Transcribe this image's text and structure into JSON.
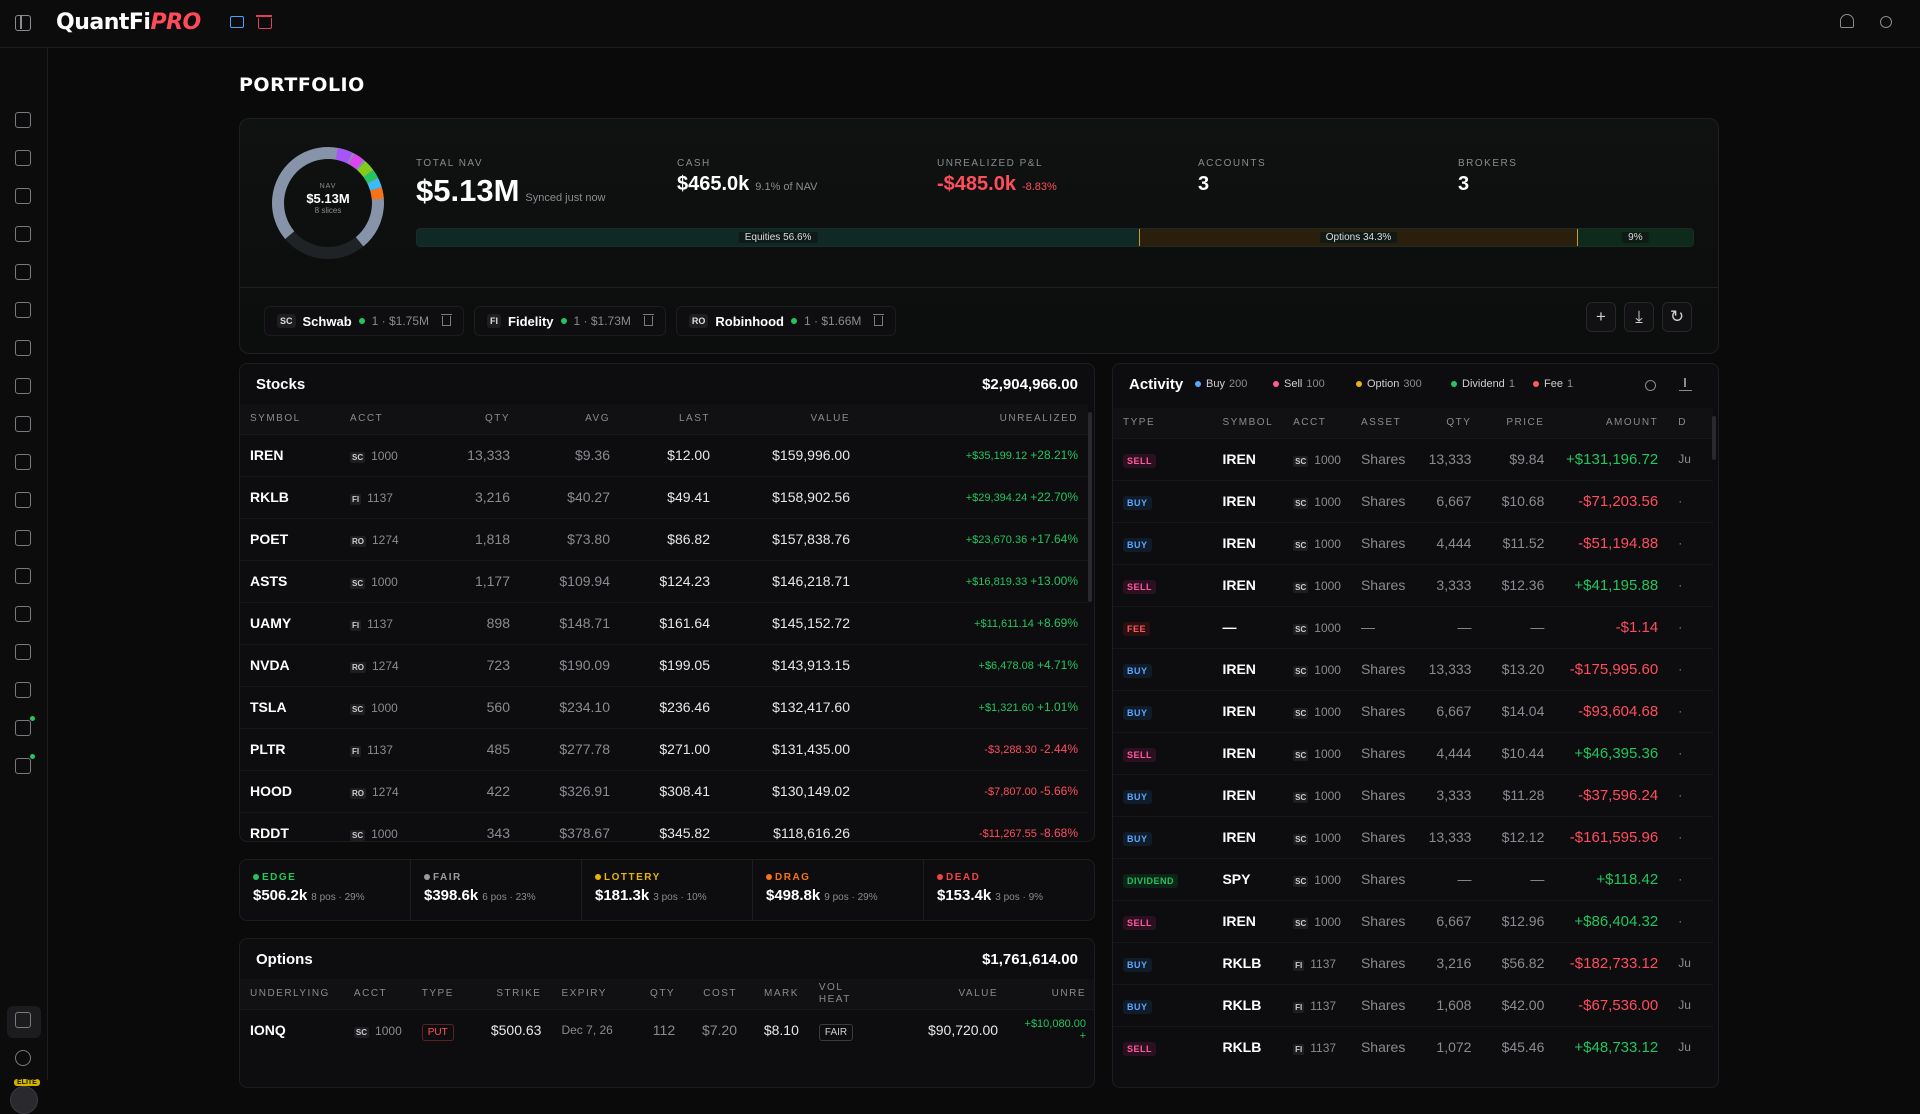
{
  "app": {
    "brand_main": "QuantFi",
    "brand_accent": "PRO"
  },
  "page": {
    "title": "PORTFOLIO"
  },
  "summary": {
    "donut": {
      "label": "NAV",
      "value": "$5.13M",
      "sub": "8 slices"
    },
    "total_nav": {
      "label": "TOTAL NAV",
      "value": "$5.13M",
      "sub": "Synced just now"
    },
    "cash": {
      "label": "CASH",
      "value": "$465.0k",
      "sub": "9.1% of NAV"
    },
    "unrealized": {
      "label": "UNREALIZED P&L",
      "value": "-$485.0k",
      "sub": "-8.83%"
    },
    "accounts": {
      "label": "ACCOUNTS",
      "value": "3"
    },
    "brokers": {
      "label": "BROKERS",
      "value": "3"
    },
    "allocation": [
      {
        "label": "Equities 56.6%",
        "pct": 56.6,
        "color": "#0f2a26"
      },
      {
        "label": "Options 34.3%",
        "pct": 34.3,
        "color": "#2a1e0c"
      },
      {
        "label": "9%",
        "pct": 9.1,
        "color": "#0e2a1a"
      }
    ]
  },
  "broker_chips": [
    {
      "tag": "SC",
      "name": "Schwab",
      "meta": "1 · $1.75M"
    },
    {
      "tag": "FI",
      "name": "Fidelity",
      "meta": "1 · $1.73M"
    },
    {
      "tag": "RO",
      "name": "Robinhood",
      "meta": "1 · $1.66M"
    }
  ],
  "actions": {
    "add": "+",
    "download": "⤓",
    "refresh": "↻"
  },
  "stocks": {
    "title": "Stocks",
    "total": "$2,904,966.00",
    "columns": [
      "SYMBOL",
      "ACCT",
      "QTY",
      "AVG",
      "LAST",
      "VALUE",
      "UNREALIZED"
    ],
    "rows": [
      {
        "symbol": "IREN",
        "tag": "SC",
        "acct": "1000",
        "qty": "13,333",
        "avg": "$9.36",
        "last": "$12.00",
        "value": "$159,996.00",
        "pnl": "+$35,199.12",
        "pct": "+28.21%",
        "up": true
      },
      {
        "symbol": "RKLB",
        "tag": "FI",
        "acct": "1137",
        "qty": "3,216",
        "avg": "$40.27",
        "last": "$49.41",
        "value": "$158,902.56",
        "pnl": "+$29,394.24",
        "pct": "+22.70%",
        "up": true
      },
      {
        "symbol": "POET",
        "tag": "RO",
        "acct": "1274",
        "qty": "1,818",
        "avg": "$73.80",
        "last": "$86.82",
        "value": "$157,838.76",
        "pnl": "+$23,670.36",
        "pct": "+17.64%",
        "up": true
      },
      {
        "symbol": "ASTS",
        "tag": "SC",
        "acct": "1000",
        "qty": "1,177",
        "avg": "$109.94",
        "last": "$124.23",
        "value": "$146,218.71",
        "pnl": "+$16,819.33",
        "pct": "+13.00%",
        "up": true
      },
      {
        "symbol": "UAMY",
        "tag": "FI",
        "acct": "1137",
        "qty": "898",
        "avg": "$148.71",
        "last": "$161.64",
        "value": "$145,152.72",
        "pnl": "+$11,611.14",
        "pct": "+8.69%",
        "up": true
      },
      {
        "symbol": "NVDA",
        "tag": "RO",
        "acct": "1274",
        "qty": "723",
        "avg": "$190.09",
        "last": "$199.05",
        "value": "$143,913.15",
        "pnl": "+$6,478.08",
        "pct": "+4.71%",
        "up": true
      },
      {
        "symbol": "TSLA",
        "tag": "SC",
        "acct": "1000",
        "qty": "560",
        "avg": "$234.10",
        "last": "$236.46",
        "value": "$132,417.60",
        "pnl": "+$1,321.60",
        "pct": "+1.01%",
        "up": true
      },
      {
        "symbol": "PLTR",
        "tag": "FI",
        "acct": "1137",
        "qty": "485",
        "avg": "$277.78",
        "last": "$271.00",
        "value": "$131,435.00",
        "pnl": "-$3,288.30",
        "pct": "-2.44%",
        "up": false
      },
      {
        "symbol": "HOOD",
        "tag": "RO",
        "acct": "1274",
        "qty": "422",
        "avg": "$326.91",
        "last": "$308.41",
        "value": "$130,149.02",
        "pnl": "-$7,807.00",
        "pct": "-5.66%",
        "up": false
      },
      {
        "symbol": "RDDT",
        "tag": "SC",
        "acct": "1000",
        "qty": "343",
        "avg": "$378.67",
        "last": "$345.82",
        "value": "$118,616.26",
        "pnl": "-$11,267.55",
        "pct": "-8.68%",
        "up": false
      }
    ]
  },
  "buckets": [
    {
      "label": "EDGE",
      "color": "#22c55e",
      "value": "$506.2k",
      "sub": "8 pos · 29%"
    },
    {
      "label": "FAIR",
      "color": "#9a9aa0",
      "value": "$398.6k",
      "sub": "6 pos · 23%"
    },
    {
      "label": "LOTTERY",
      "color": "#eab308",
      "value": "$181.3k",
      "sub": "3 pos · 10%"
    },
    {
      "label": "DRAG",
      "color": "#f97316",
      "value": "$498.8k",
      "sub": "9 pos · 29%"
    },
    {
      "label": "DEAD",
      "color": "#ef4444",
      "value": "$153.4k",
      "sub": "3 pos · 9%"
    }
  ],
  "options": {
    "title": "Options",
    "total": "$1,761,614.00",
    "columns": [
      "UNDERLYING",
      "ACCT",
      "TYPE",
      "STRIKE",
      "EXPIRY",
      "QTY",
      "COST",
      "MARK",
      "VOL",
      "HEAT",
      "VALUE",
      "UNRE"
    ],
    "rows": [
      {
        "symbol": "IONQ",
        "tag": "SC",
        "acct": "1000",
        "type": "PUT",
        "strike": "$500.63",
        "expiry": "Dec 7, 26",
        "qty": "112",
        "cost": "$7.20",
        "mark": "$8.10",
        "heat": "FAIR",
        "value": "$90,720.00",
        "pnl": "+$10,080.00",
        "more": "+"
      }
    ]
  },
  "activity": {
    "title": "Activity",
    "legend": [
      {
        "label": "Buy",
        "count": "200",
        "color": "#5aa7ff"
      },
      {
        "label": "Sell",
        "count": "100",
        "color": "#ff5a9a"
      },
      {
        "label": "Option",
        "count": "300",
        "color": "#eab308"
      },
      {
        "label": "Dividend",
        "count": "1",
        "color": "#22c55e"
      },
      {
        "label": "Fee",
        "count": "1",
        "color": "#ff5a5a"
      }
    ],
    "columns": [
      "TYPE",
      "SYMBOL",
      "ACCT",
      "ASSET",
      "QTY",
      "PRICE",
      "AMOUNT",
      "D"
    ],
    "rows": [
      {
        "type": "SELL",
        "cls": "t-sell",
        "symbol": "IREN",
        "tag": "SC",
        "acct": "1000",
        "asset": "Shares",
        "qty": "13,333",
        "price": "$9.84",
        "amount": "+$131,196.72",
        "up": true,
        "d": "Ju"
      },
      {
        "type": "BUY",
        "cls": "t-buy",
        "symbol": "IREN",
        "tag": "SC",
        "acct": "1000",
        "asset": "Shares",
        "qty": "6,667",
        "price": "$10.68",
        "amount": "-$71,203.56",
        "up": false,
        "d": "·"
      },
      {
        "type": "BUY",
        "cls": "t-buy",
        "symbol": "IREN",
        "tag": "SC",
        "acct": "1000",
        "asset": "Shares",
        "qty": "4,444",
        "price": "$11.52",
        "amount": "-$51,194.88",
        "up": false,
        "d": "·"
      },
      {
        "type": "SELL",
        "cls": "t-sell",
        "symbol": "IREN",
        "tag": "SC",
        "acct": "1000",
        "asset": "Shares",
        "qty": "3,333",
        "price": "$12.36",
        "amount": "+$41,195.88",
        "up": true,
        "d": "·"
      },
      {
        "type": "FEE",
        "cls": "t-fee",
        "symbol": "—",
        "tag": "SC",
        "acct": "1000",
        "asset": "—",
        "qty": "—",
        "price": "—",
        "amount": "-$1.14",
        "up": false,
        "d": "·"
      },
      {
        "type": "BUY",
        "cls": "t-buy",
        "symbol": "IREN",
        "tag": "SC",
        "acct": "1000",
        "asset": "Shares",
        "qty": "13,333",
        "price": "$13.20",
        "amount": "-$175,995.60",
        "up": false,
        "d": "·"
      },
      {
        "type": "BUY",
        "cls": "t-buy",
        "symbol": "IREN",
        "tag": "SC",
        "acct": "1000",
        "asset": "Shares",
        "qty": "6,667",
        "price": "$14.04",
        "amount": "-$93,604.68",
        "up": false,
        "d": "·"
      },
      {
        "type": "SELL",
        "cls": "t-sell",
        "symbol": "IREN",
        "tag": "SC",
        "acct": "1000",
        "asset": "Shares",
        "qty": "4,444",
        "price": "$10.44",
        "amount": "+$46,395.36",
        "up": true,
        "d": "·"
      },
      {
        "type": "BUY",
        "cls": "t-buy",
        "symbol": "IREN",
        "tag": "SC",
        "acct": "1000",
        "asset": "Shares",
        "qty": "3,333",
        "price": "$11.28",
        "amount": "-$37,596.24",
        "up": false,
        "d": "·"
      },
      {
        "type": "BUY",
        "cls": "t-buy",
        "symbol": "IREN",
        "tag": "SC",
        "acct": "1000",
        "asset": "Shares",
        "qty": "13,333",
        "price": "$12.12",
        "amount": "-$161,595.96",
        "up": false,
        "d": "·"
      },
      {
        "type": "DIVIDEND",
        "cls": "t-div",
        "symbol": "SPY",
        "tag": "SC",
        "acct": "1000",
        "asset": "Shares",
        "qty": "—",
        "price": "—",
        "amount": "+$118.42",
        "up": true,
        "d": "·"
      },
      {
        "type": "SELL",
        "cls": "t-sell",
        "symbol": "IREN",
        "tag": "SC",
        "acct": "1000",
        "asset": "Shares",
        "qty": "6,667",
        "price": "$12.96",
        "amount": "+$86,404.32",
        "up": true,
        "d": "·"
      },
      {
        "type": "BUY",
        "cls": "t-buy",
        "symbol": "RKLB",
        "tag": "FI",
        "acct": "1137",
        "asset": "Shares",
        "qty": "3,216",
        "price": "$56.82",
        "amount": "-$182,733.12",
        "up": false,
        "d": "Ju"
      },
      {
        "type": "BUY",
        "cls": "t-buy",
        "symbol": "RKLB",
        "tag": "FI",
        "acct": "1137",
        "asset": "Shares",
        "qty": "1,608",
        "price": "$42.00",
        "amount": "-$67,536.00",
        "up": false,
        "d": "Ju"
      },
      {
        "type": "SELL",
        "cls": "t-sell",
        "symbol": "RKLB",
        "tag": "FI",
        "acct": "1137",
        "asset": "Shares",
        "qty": "1,072",
        "price": "$45.46",
        "amount": "+$48,733.12",
        "up": true,
        "d": "Ju"
      }
    ]
  },
  "sidebar": {
    "icons": [
      "home-icon",
      "chart-icon",
      "nodes-icon",
      "graduation-icon",
      "star-icon",
      "crown-icon",
      "alert-icon",
      "pulse-icon",
      "calendar-icon",
      "exchange-icon",
      "bank-icon",
      "eye-icon",
      "building-icon",
      "terminal-icon",
      "grid-icon",
      "diamond-icon",
      "analytics-icon",
      "flask-icon"
    ],
    "elite_badge": "ELITE"
  }
}
